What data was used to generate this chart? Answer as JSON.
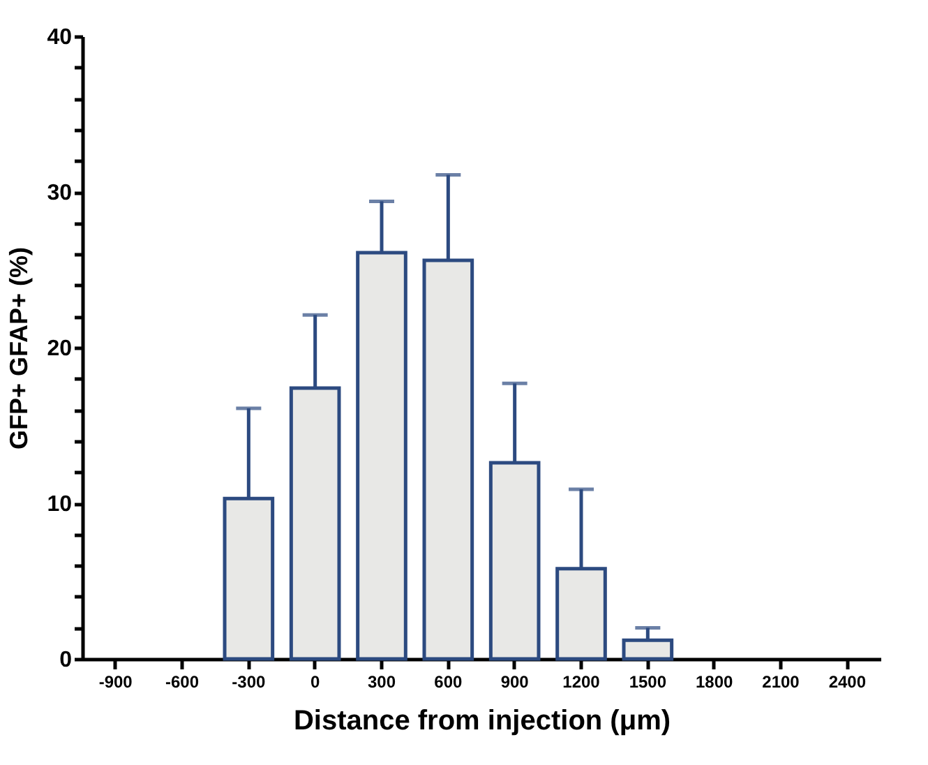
{
  "chart_data": {
    "type": "bar",
    "xlabel": "Distance from injection (μm)",
    "ylabel": "GFP+ GFAP+ (%)",
    "categories": [
      "-900",
      "-600",
      "-300",
      "0",
      "300",
      "600",
      "900",
      "1200",
      "1500",
      "1800",
      "2100",
      "2400"
    ],
    "series": [
      {
        "color": "#e8e8e6",
        "values": [
          null,
          null,
          10.3,
          17.4,
          26.1,
          25.6,
          12.6,
          5.8,
          1.2,
          null,
          null,
          null
        ],
        "errors": [
          null,
          null,
          [
            10.3,
            16.1
          ],
          [
            17.4,
            22.1
          ],
          [
            26.1,
            29.4
          ],
          [
            25.6,
            31.1
          ],
          [
            12.6,
            17.7
          ],
          [
            5.8,
            10.9
          ],
          [
            1.2,
            2.0
          ],
          null,
          null,
          null
        ]
      }
    ],
    "ylim": [
      0,
      40
    ],
    "yticks": [
      0,
      {
        "value": 2,
        "label": null
      },
      {
        "value": 4,
        "label": null
      },
      {
        "value": 6,
        "label": null
      },
      {
        "value": 8,
        "label": null
      },
      10,
      {
        "value": 12,
        "label": null
      },
      {
        "value": 14,
        "label": null
      },
      {
        "value": 16,
        "label": null
      },
      {
        "value": 18,
        "label": null
      },
      20,
      {
        "value": 22,
        "label": null
      },
      {
        "value": 24,
        "label": null
      },
      {
        "value": 26,
        "label": null
      },
      {
        "value": 28,
        "label": null
      },
      30,
      {
        "value": 32,
        "label": null
      },
      {
        "value": 34,
        "label": null
      },
      {
        "value": 36,
        "label": null
      },
      {
        "value": 38,
        "label": null
      },
      40
    ],
    "grid": false
  }
}
